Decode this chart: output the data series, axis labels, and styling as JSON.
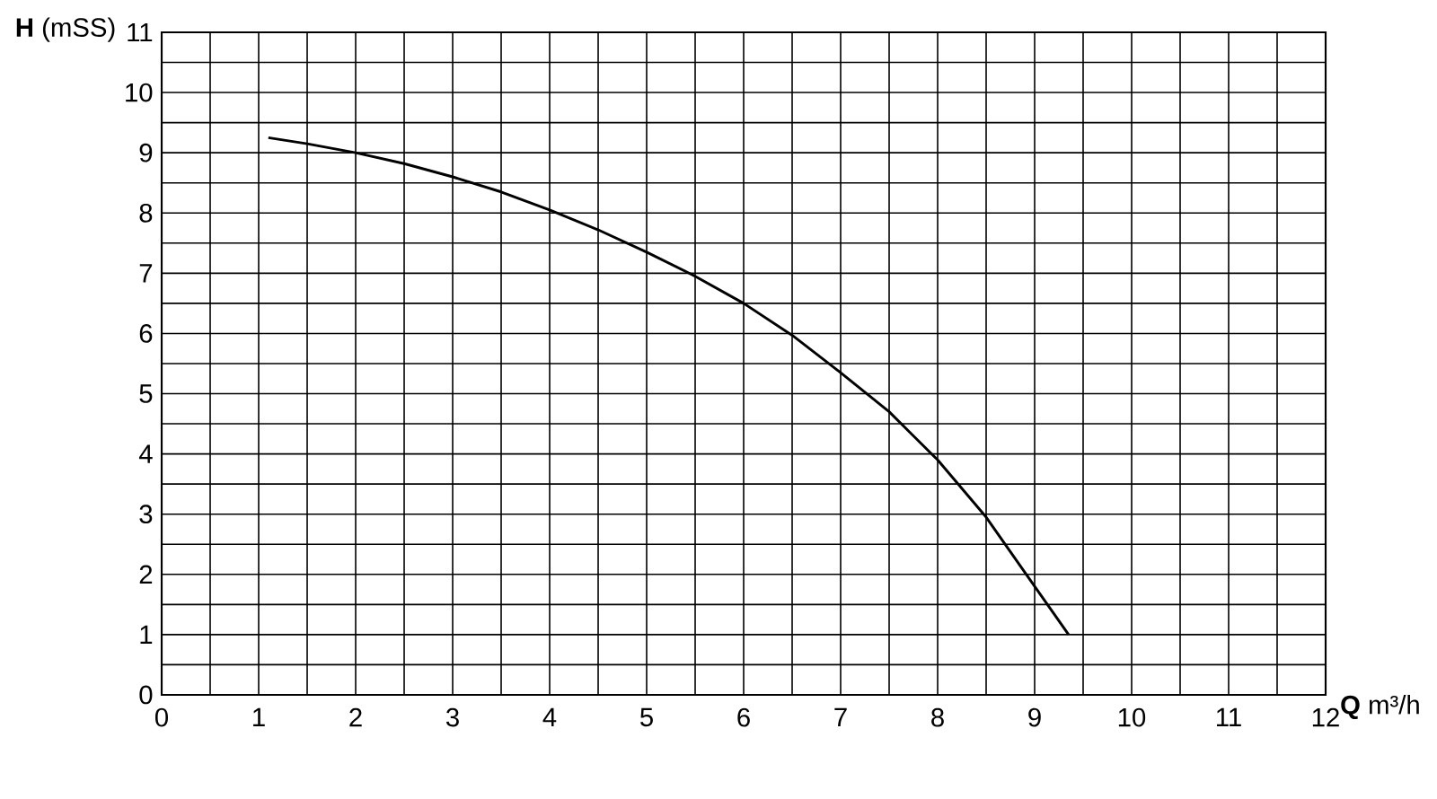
{
  "chart_data": {
    "type": "line",
    "xlabel": "**Q** m³/h",
    "ylabel": "**H** (mSS)",
    "x": [
      1.1,
      1.5,
      2,
      2.5,
      3,
      3.5,
      4,
      4.5,
      5,
      5.5,
      6,
      6.5,
      7,
      7.5,
      8,
      8.5,
      9,
      9.35
    ],
    "series": [
      {
        "color": "#000000",
        "values": [
          9.25,
          9.15,
          9.0,
          8.82,
          8.6,
          8.35,
          8.05,
          7.72,
          7.35,
          6.95,
          6.5,
          5.97,
          5.35,
          4.7,
          3.9,
          2.95,
          1.8,
          1.0
        ]
      }
    ],
    "xlim": [
      0,
      12
    ],
    "ylim": [
      0,
      11
    ],
    "xticks": [
      0,
      1,
      2,
      3,
      4,
      5,
      6,
      7,
      8,
      9,
      10,
      11,
      12
    ],
    "yticks": [
      0,
      1,
      2,
      3,
      4,
      5,
      6,
      7,
      8,
      9,
      10,
      11
    ],
    "grid": true,
    "marker": "none",
    "line_style": "solid"
  }
}
